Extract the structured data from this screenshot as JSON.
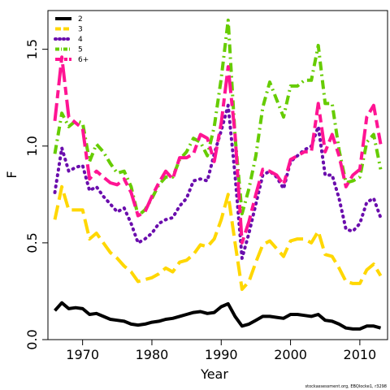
{
  "chart_data": {
    "type": "line",
    "xlabel": "Year",
    "ylabel": "F",
    "xlim": [
      1965,
      2014
    ],
    "ylim": [
      0,
      1.7
    ],
    "x_ticks": [
      1970,
      1980,
      1990,
      2000,
      2010
    ],
    "y_ticks": [
      0.0,
      0.5,
      1.0,
      1.5
    ],
    "x_tick_labels": [
      "1970",
      "1980",
      "1990",
      "2000",
      "2010"
    ],
    "y_tick_labels": [
      "0.0",
      "0.5",
      "1.0",
      "1.5"
    ],
    "legend_position": "top-left",
    "grid": false,
    "credit": "stockassessment.org, EBQlocke1, r3298",
    "x": [
      1966,
      1967,
      1968,
      1969,
      1970,
      1971,
      1972,
      1973,
      1974,
      1975,
      1976,
      1977,
      1978,
      1979,
      1980,
      1981,
      1982,
      1983,
      1984,
      1985,
      1986,
      1987,
      1988,
      1989,
      1990,
      1991,
      1992,
      1993,
      1994,
      1995,
      1996,
      1997,
      1998,
      1999,
      2000,
      2001,
      2002,
      2003,
      2004,
      2005,
      2006,
      2007,
      2008,
      2009,
      2010,
      2011,
      2012,
      2013
    ],
    "series": [
      {
        "name": "2",
        "color": "#000000",
        "dash": "solid",
        "values": [
          0.15,
          0.19,
          0.16,
          0.165,
          0.16,
          0.13,
          0.135,
          0.12,
          0.105,
          0.1,
          0.095,
          0.08,
          0.075,
          0.08,
          0.09,
          0.095,
          0.105,
          0.11,
          0.12,
          0.13,
          0.14,
          0.145,
          0.135,
          0.14,
          0.17,
          0.185,
          0.12,
          0.07,
          0.08,
          0.1,
          0.12,
          0.12,
          0.115,
          0.11,
          0.13,
          0.13,
          0.125,
          0.12,
          0.13,
          0.1,
          0.095,
          0.08,
          0.06,
          0.055,
          0.055,
          0.07,
          0.07,
          0.06
        ]
      },
      {
        "name": "3",
        "color": "#ffd700",
        "dash": "long",
        "values": [
          0.62,
          0.79,
          0.67,
          0.67,
          0.67,
          0.52,
          0.55,
          0.5,
          0.45,
          0.42,
          0.38,
          0.35,
          0.3,
          0.31,
          0.32,
          0.34,
          0.37,
          0.35,
          0.4,
          0.41,
          0.44,
          0.49,
          0.48,
          0.52,
          0.62,
          0.75,
          0.5,
          0.26,
          0.3,
          0.4,
          0.49,
          0.51,
          0.47,
          0.43,
          0.51,
          0.52,
          0.52,
          0.5,
          0.56,
          0.44,
          0.43,
          0.37,
          0.3,
          0.29,
          0.29,
          0.36,
          0.39,
          0.33
        ]
      },
      {
        "name": "4",
        "color": "#6a0dad",
        "dash": "dotted",
        "values": [
          0.76,
          0.99,
          0.87,
          0.89,
          0.9,
          0.77,
          0.79,
          0.74,
          0.7,
          0.66,
          0.68,
          0.6,
          0.5,
          0.52,
          0.55,
          0.6,
          0.62,
          0.63,
          0.69,
          0.73,
          0.82,
          0.83,
          0.82,
          0.96,
          1.08,
          1.21,
          0.85,
          0.42,
          0.55,
          0.7,
          0.85,
          0.87,
          0.84,
          0.78,
          0.92,
          0.95,
          0.98,
          1.0,
          1.1,
          0.85,
          0.85,
          0.73,
          0.57,
          0.56,
          0.6,
          0.71,
          0.73,
          0.63
        ]
      },
      {
        "name": "5",
        "color": "#66cc00",
        "dash": "dashdot",
        "values": [
          0.96,
          1.17,
          1.1,
          1.13,
          1.12,
          0.92,
          1.01,
          0.97,
          0.91,
          0.86,
          0.87,
          0.79,
          0.64,
          0.67,
          0.73,
          0.8,
          0.84,
          0.84,
          0.93,
          0.97,
          1.04,
          1.02,
          0.95,
          1.1,
          1.35,
          1.65,
          1.05,
          0.65,
          0.78,
          0.95,
          1.2,
          1.33,
          1.24,
          1.15,
          1.31,
          1.31,
          1.34,
          1.34,
          1.52,
          1.22,
          1.22,
          0.98,
          0.81,
          0.82,
          0.84,
          1.02,
          1.06,
          0.88
        ]
      },
      {
        "name": "6+",
        "color": "#ff1493",
        "dash": "longshort",
        "values": [
          1.13,
          1.46,
          1.15,
          1.12,
          1.09,
          0.83,
          0.87,
          0.84,
          0.81,
          0.8,
          0.83,
          0.76,
          0.64,
          0.66,
          0.74,
          0.81,
          0.87,
          0.83,
          0.94,
          0.94,
          0.96,
          1.06,
          1.04,
          0.92,
          1.12,
          1.41,
          1.06,
          0.5,
          0.61,
          0.75,
          0.88,
          0.87,
          0.85,
          0.8,
          0.93,
          0.95,
          0.97,
          0.97,
          1.22,
          0.97,
          1.06,
          0.95,
          0.79,
          0.85,
          0.88,
          1.15,
          1.21,
          1.01
        ]
      }
    ]
  }
}
